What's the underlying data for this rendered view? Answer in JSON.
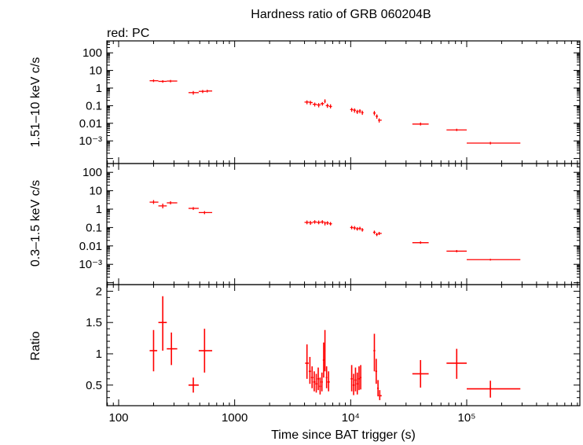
{
  "title": "Hardness ratio of GRB 060204B",
  "legend_text": "red: PC",
  "xlabel": "Time since BAT trigger (s)",
  "x_tick_labels": [
    "100",
    "1000",
    "10⁴",
    "10⁵"
  ],
  "colors": {
    "data": "#ff0000",
    "axes": "#000000",
    "background": "#ffffff"
  },
  "chart_data": [
    {
      "type": "scatter",
      "panel": "hard",
      "ylabel": "1.51–10 keV c/s",
      "yscale": "log",
      "ylim": [
        0.0003,
        200
      ],
      "xscale": "log",
      "xlim": [
        70,
        1000000
      ],
      "y_tick_labels": [
        "100",
        "10",
        "1",
        "0.1",
        "0.01",
        "10⁻³"
      ],
      "series": [
        {
          "points": [
            {
              "x": 200,
              "x_lo": 185,
              "x_hi": 220,
              "y": 2.6,
              "y_lo": 2.2,
              "y_hi": 3.1
            },
            {
              "x": 240,
              "x_lo": 220,
              "x_hi": 260,
              "y": 2.4,
              "y_lo": 2.0,
              "y_hi": 2.8
            },
            {
              "x": 280,
              "x_lo": 260,
              "x_hi": 320,
              "y": 2.5,
              "y_lo": 2.1,
              "y_hi": 2.9
            },
            {
              "x": 440,
              "x_lo": 400,
              "x_hi": 490,
              "y": 0.55,
              "y_lo": 0.42,
              "y_hi": 0.68
            },
            {
              "x": 530,
              "x_lo": 490,
              "x_hi": 570,
              "y": 0.65,
              "y_lo": 0.52,
              "y_hi": 0.78
            },
            {
              "x": 580,
              "x_lo": 570,
              "x_hi": 640,
              "y": 0.68,
              "y_lo": 0.56,
              "y_hi": 0.8
            },
            {
              "x": 4200,
              "x_lo": 4000,
              "x_hi": 4400,
              "y": 0.16,
              "y_lo": 0.12,
              "y_hi": 0.2
            },
            {
              "x": 4500,
              "x_lo": 4400,
              "x_hi": 4700,
              "y": 0.15,
              "y_lo": 0.11,
              "y_hi": 0.19
            },
            {
              "x": 4900,
              "x_lo": 4700,
              "x_hi": 5100,
              "y": 0.12,
              "y_lo": 0.09,
              "y_hi": 0.15
            },
            {
              "x": 5300,
              "x_lo": 5100,
              "x_hi": 5500,
              "y": 0.11,
              "y_lo": 0.08,
              "y_hi": 0.14
            },
            {
              "x": 5700,
              "x_lo": 5500,
              "x_hi": 5900,
              "y": 0.13,
              "y_lo": 0.1,
              "y_hi": 0.16
            },
            {
              "x": 6000,
              "x_lo": 5900,
              "x_hi": 6100,
              "y": 0.18,
              "y_lo": 0.14,
              "y_hi": 0.23
            },
            {
              "x": 6300,
              "x_lo": 6100,
              "x_hi": 6500,
              "y": 0.1,
              "y_lo": 0.075,
              "y_hi": 0.13
            },
            {
              "x": 6700,
              "x_lo": 6500,
              "x_hi": 6900,
              "y": 0.09,
              "y_lo": 0.07,
              "y_hi": 0.12
            },
            {
              "x": 10200,
              "x_lo": 9900,
              "x_hi": 10500,
              "y": 0.06,
              "y_lo": 0.045,
              "y_hi": 0.075
            },
            {
              "x": 10800,
              "x_lo": 10500,
              "x_hi": 11100,
              "y": 0.055,
              "y_lo": 0.04,
              "y_hi": 0.07
            },
            {
              "x": 11400,
              "x_lo": 11100,
              "x_hi": 11700,
              "y": 0.045,
              "y_lo": 0.034,
              "y_hi": 0.058
            },
            {
              "x": 12000,
              "x_lo": 11700,
              "x_hi": 12300,
              "y": 0.05,
              "y_lo": 0.037,
              "y_hi": 0.063
            },
            {
              "x": 12600,
              "x_lo": 12300,
              "x_hi": 12900,
              "y": 0.04,
              "y_lo": 0.03,
              "y_hi": 0.052
            },
            {
              "x": 16000,
              "x_lo": 15600,
              "x_hi": 16400,
              "y": 0.038,
              "y_lo": 0.028,
              "y_hi": 0.05
            },
            {
              "x": 16800,
              "x_lo": 16400,
              "x_hi": 17200,
              "y": 0.025,
              "y_lo": 0.018,
              "y_hi": 0.032
            },
            {
              "x": 17600,
              "x_lo": 17200,
              "x_hi": 18500,
              "y": 0.015,
              "y_lo": 0.011,
              "y_hi": 0.019
            },
            {
              "x": 40000,
              "x_lo": 34000,
              "x_hi": 47000,
              "y": 0.009,
              "y_lo": 0.0075,
              "y_hi": 0.011
            },
            {
              "x": 82000,
              "x_lo": 67000,
              "x_hi": 100000,
              "y": 0.0042,
              "y_lo": 0.0036,
              "y_hi": 0.0049
            },
            {
              "x": 160000,
              "x_lo": 100000,
              "x_hi": 290000,
              "y": 0.00075,
              "y_lo": 0.00063,
              "y_hi": 0.00088
            }
          ]
        }
      ]
    },
    {
      "type": "scatter",
      "panel": "soft",
      "ylabel": "0.3–1.5 keV c/s",
      "yscale": "log",
      "ylim": [
        0.0003,
        200
      ],
      "xscale": "log",
      "xlim": [
        70,
        1000000
      ],
      "y_tick_labels": [
        "100",
        "10",
        "1",
        "0.1",
        "0.01",
        "10⁻³"
      ],
      "series": [
        {
          "points": [
            {
              "x": 200,
              "x_lo": 185,
              "x_hi": 220,
              "y": 2.4,
              "y_lo": 1.9,
              "y_hi": 3.1
            },
            {
              "x": 240,
              "x_lo": 220,
              "x_hi": 260,
              "y": 1.5,
              "y_lo": 1.1,
              "y_hi": 2.0
            },
            {
              "x": 280,
              "x_lo": 260,
              "x_hi": 320,
              "y": 2.2,
              "y_lo": 1.8,
              "y_hi": 2.7
            },
            {
              "x": 440,
              "x_lo": 400,
              "x_hi": 490,
              "y": 1.1,
              "y_lo": 0.9,
              "y_hi": 1.3
            },
            {
              "x": 550,
              "x_lo": 490,
              "x_hi": 640,
              "y": 0.65,
              "y_lo": 0.53,
              "y_hi": 0.78
            },
            {
              "x": 4200,
              "x_lo": 4000,
              "x_hi": 4400,
              "y": 0.19,
              "y_lo": 0.15,
              "y_hi": 0.24
            },
            {
              "x": 4500,
              "x_lo": 4400,
              "x_hi": 4700,
              "y": 0.18,
              "y_lo": 0.14,
              "y_hi": 0.23
            },
            {
              "x": 4900,
              "x_lo": 4700,
              "x_hi": 5100,
              "y": 0.2,
              "y_lo": 0.16,
              "y_hi": 0.25
            },
            {
              "x": 5300,
              "x_lo": 5100,
              "x_hi": 5500,
              "y": 0.19,
              "y_lo": 0.15,
              "y_hi": 0.24
            },
            {
              "x": 5700,
              "x_lo": 5500,
              "x_hi": 5900,
              "y": 0.2,
              "y_lo": 0.16,
              "y_hi": 0.25
            },
            {
              "x": 6000,
              "x_lo": 5900,
              "x_hi": 6100,
              "y": 0.17,
              "y_lo": 0.13,
              "y_hi": 0.21
            },
            {
              "x": 6300,
              "x_lo": 6100,
              "x_hi": 6500,
              "y": 0.18,
              "y_lo": 0.14,
              "y_hi": 0.22
            },
            {
              "x": 6700,
              "x_lo": 6500,
              "x_hi": 6900,
              "y": 0.16,
              "y_lo": 0.13,
              "y_hi": 0.2
            },
            {
              "x": 10200,
              "x_lo": 9900,
              "x_hi": 10500,
              "y": 0.1,
              "y_lo": 0.08,
              "y_hi": 0.125
            },
            {
              "x": 10800,
              "x_lo": 10500,
              "x_hi": 11100,
              "y": 0.095,
              "y_lo": 0.075,
              "y_hi": 0.12
            },
            {
              "x": 11400,
              "x_lo": 11100,
              "x_hi": 11700,
              "y": 0.085,
              "y_lo": 0.068,
              "y_hi": 0.105
            },
            {
              "x": 12000,
              "x_lo": 11700,
              "x_hi": 12300,
              "y": 0.09,
              "y_lo": 0.072,
              "y_hi": 0.11
            },
            {
              "x": 12600,
              "x_lo": 12300,
              "x_hi": 12900,
              "y": 0.075,
              "y_lo": 0.06,
              "y_hi": 0.093
            },
            {
              "x": 16000,
              "x_lo": 15600,
              "x_hi": 16400,
              "y": 0.055,
              "y_lo": 0.044,
              "y_hi": 0.068
            },
            {
              "x": 16800,
              "x_lo": 16400,
              "x_hi": 17200,
              "y": 0.042,
              "y_lo": 0.034,
              "y_hi": 0.052
            },
            {
              "x": 17600,
              "x_lo": 17200,
              "x_hi": 18500,
              "y": 0.048,
              "y_lo": 0.039,
              "y_hi": 0.058
            },
            {
              "x": 40000,
              "x_lo": 34000,
              "x_hi": 47000,
              "y": 0.015,
              "y_lo": 0.013,
              "y_hi": 0.018
            },
            {
              "x": 82000,
              "x_lo": 67000,
              "x_hi": 100000,
              "y": 0.0052,
              "y_lo": 0.0045,
              "y_hi": 0.006
            },
            {
              "x": 160000,
              "x_lo": 100000,
              "x_hi": 290000,
              "y": 0.0018,
              "y_lo": 0.0016,
              "y_hi": 0.002
            }
          ]
        }
      ]
    },
    {
      "type": "scatter",
      "panel": "ratio",
      "ylabel": "Ratio",
      "yscale": "linear",
      "ylim": [
        0.2,
        2.05
      ],
      "xscale": "log",
      "xlim": [
        70,
        1000000
      ],
      "y_tick_labels": [
        "2",
        "1.5",
        "1",
        "0.5"
      ],
      "series": [
        {
          "points": [
            {
              "x": 200,
              "x_lo": 185,
              "x_hi": 215,
              "y": 1.05,
              "y_lo": 0.72,
              "y_hi": 1.38
            },
            {
              "x": 240,
              "x_lo": 220,
              "x_hi": 260,
              "y": 1.5,
              "y_lo": 1.05,
              "y_hi": 1.92
            },
            {
              "x": 285,
              "x_lo": 260,
              "x_hi": 320,
              "y": 1.08,
              "y_lo": 0.82,
              "y_hi": 1.34
            },
            {
              "x": 440,
              "x_lo": 400,
              "x_hi": 490,
              "y": 0.5,
              "y_lo": 0.38,
              "y_hi": 0.62
            },
            {
              "x": 550,
              "x_lo": 490,
              "x_hi": 640,
              "y": 1.05,
              "y_lo": 0.7,
              "y_hi": 1.4
            },
            {
              "x": 4200,
              "x_lo": 4050,
              "x_hi": 4350,
              "y": 0.85,
              "y_lo": 0.6,
              "y_hi": 1.15
            },
            {
              "x": 4450,
              "x_lo": 4350,
              "x_hi": 4550,
              "y": 0.72,
              "y_lo": 0.52,
              "y_hi": 0.95
            },
            {
              "x": 4650,
              "x_lo": 4550,
              "x_hi": 4750,
              "y": 0.62,
              "y_lo": 0.45,
              "y_hi": 0.8
            },
            {
              "x": 4850,
              "x_lo": 4750,
              "x_hi": 4950,
              "y": 0.55,
              "y_lo": 0.4,
              "y_hi": 0.72
            },
            {
              "x": 5050,
              "x_lo": 4950,
              "x_hi": 5150,
              "y": 0.52,
              "y_lo": 0.38,
              "y_hi": 0.68
            },
            {
              "x": 5250,
              "x_lo": 5150,
              "x_hi": 5350,
              "y": 0.6,
              "y_lo": 0.42,
              "y_hi": 0.78
            },
            {
              "x": 5450,
              "x_lo": 5350,
              "x_hi": 5550,
              "y": 0.48,
              "y_lo": 0.35,
              "y_hi": 0.62
            },
            {
              "x": 5650,
              "x_lo": 5550,
              "x_hi": 5750,
              "y": 0.55,
              "y_lo": 0.4,
              "y_hi": 0.7
            },
            {
              "x": 5850,
              "x_lo": 5750,
              "x_hi": 5950,
              "y": 0.9,
              "y_lo": 0.62,
              "y_hi": 1.18
            },
            {
              "x": 6000,
              "x_lo": 5950,
              "x_hi": 6050,
              "y": 1.05,
              "y_lo": 0.72,
              "y_hi": 1.38
            },
            {
              "x": 6200,
              "x_lo": 6100,
              "x_hi": 6300,
              "y": 0.62,
              "y_lo": 0.45,
              "y_hi": 0.8
            },
            {
              "x": 6450,
              "x_lo": 6300,
              "x_hi": 6600,
              "y": 0.55,
              "y_lo": 0.4,
              "y_hi": 0.72
            },
            {
              "x": 10200,
              "x_lo": 10000,
              "x_hi": 10400,
              "y": 0.6,
              "y_lo": 0.4,
              "y_hi": 0.82
            },
            {
              "x": 10600,
              "x_lo": 10400,
              "x_hi": 10800,
              "y": 0.5,
              "y_lo": 0.34,
              "y_hi": 0.68
            },
            {
              "x": 11000,
              "x_lo": 10800,
              "x_hi": 11200,
              "y": 0.58,
              "y_lo": 0.4,
              "y_hi": 0.78
            },
            {
              "x": 11400,
              "x_lo": 11200,
              "x_hi": 11600,
              "y": 0.52,
              "y_lo": 0.35,
              "y_hi": 0.7
            },
            {
              "x": 11800,
              "x_lo": 11600,
              "x_hi": 12000,
              "y": 0.6,
              "y_lo": 0.42,
              "y_hi": 0.8
            },
            {
              "x": 12200,
              "x_lo": 12000,
              "x_hi": 12400,
              "y": 0.62,
              "y_lo": 0.43,
              "y_hi": 0.82
            },
            {
              "x": 16000,
              "x_lo": 15700,
              "x_hi": 16300,
              "y": 1.05,
              "y_lo": 0.72,
              "y_hi": 1.32
            },
            {
              "x": 16600,
              "x_lo": 16300,
              "x_hi": 16900,
              "y": 0.72,
              "y_lo": 0.52,
              "y_hi": 0.92
            },
            {
              "x": 17200,
              "x_lo": 16900,
              "x_hi": 17500,
              "y": 0.45,
              "y_lo": 0.32,
              "y_hi": 0.58
            },
            {
              "x": 17800,
              "x_lo": 17500,
              "x_hi": 18500,
              "y": 0.33,
              "y_lo": 0.26,
              "y_hi": 0.42
            },
            {
              "x": 40000,
              "x_lo": 34000,
              "x_hi": 47000,
              "y": 0.68,
              "y_lo": 0.46,
              "y_hi": 0.9
            },
            {
              "x": 82000,
              "x_lo": 67000,
              "x_hi": 100000,
              "y": 0.85,
              "y_lo": 0.6,
              "y_hi": 1.08
            },
            {
              "x": 160000,
              "x_lo": 100000,
              "x_hi": 290000,
              "y": 0.44,
              "y_lo": 0.3,
              "y_hi": 0.57
            }
          ]
        }
      ]
    }
  ]
}
